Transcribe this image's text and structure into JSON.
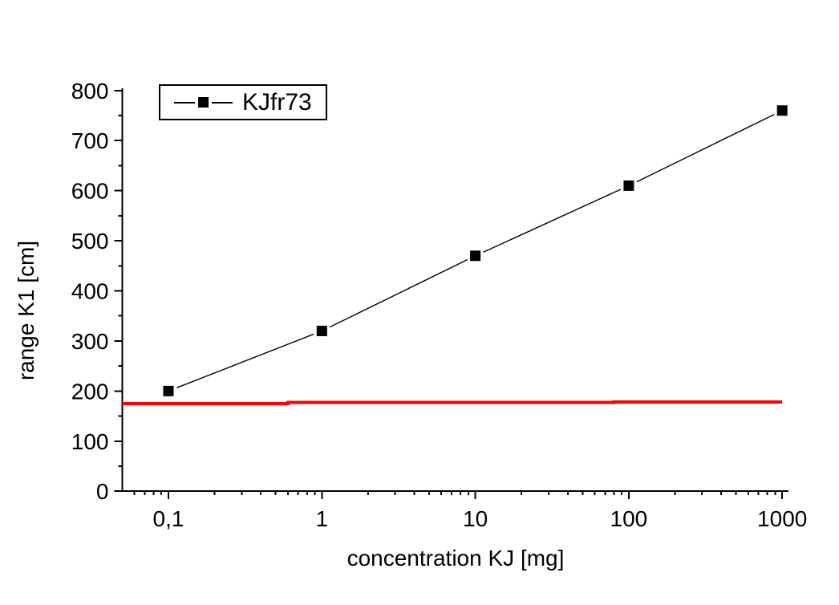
{
  "chart_data": {
    "type": "line",
    "title": "",
    "xlabel": "concentration KJ [mg]",
    "ylabel": "range K1 [cm]",
    "x_scale": "log",
    "xlim": [
      0.05,
      1100
    ],
    "ylim": [
      0,
      800
    ],
    "grid": false,
    "legend_position": "top-left",
    "x_major_ticks": [
      0.1,
      1,
      10,
      100,
      1000
    ],
    "x_major_tick_labels": [
      "0,1",
      "1",
      "10",
      "100",
      "1000"
    ],
    "y_major_ticks": [
      0,
      100,
      200,
      300,
      400,
      500,
      600,
      700,
      800
    ],
    "y_major_tick_labels": [
      "0",
      "100",
      "200",
      "300",
      "400",
      "500",
      "600",
      "700",
      "800"
    ],
    "y_major_tick_step": 100,
    "y_minor_tick_step": 50,
    "series": [
      {
        "name": "KJfr73",
        "color": "#000000",
        "marker": "filled-square",
        "x": [
          0.1,
          1,
          10,
          100,
          1000
        ],
        "y": [
          200,
          320,
          470,
          610,
          760
        ]
      }
    ],
    "reference_line": {
      "name": "red-baseline",
      "color": "#ff0000",
      "points": [
        [
          0.05,
          175
        ],
        [
          0.6,
          175
        ],
        [
          0.6,
          177
        ],
        [
          80,
          177
        ],
        [
          80,
          178
        ],
        [
          1000,
          178
        ]
      ]
    }
  },
  "colors": {
    "axis": "#000000",
    "text": "#000000",
    "series": "#000000",
    "reference": "#ff0000",
    "background": "#ffffff"
  }
}
